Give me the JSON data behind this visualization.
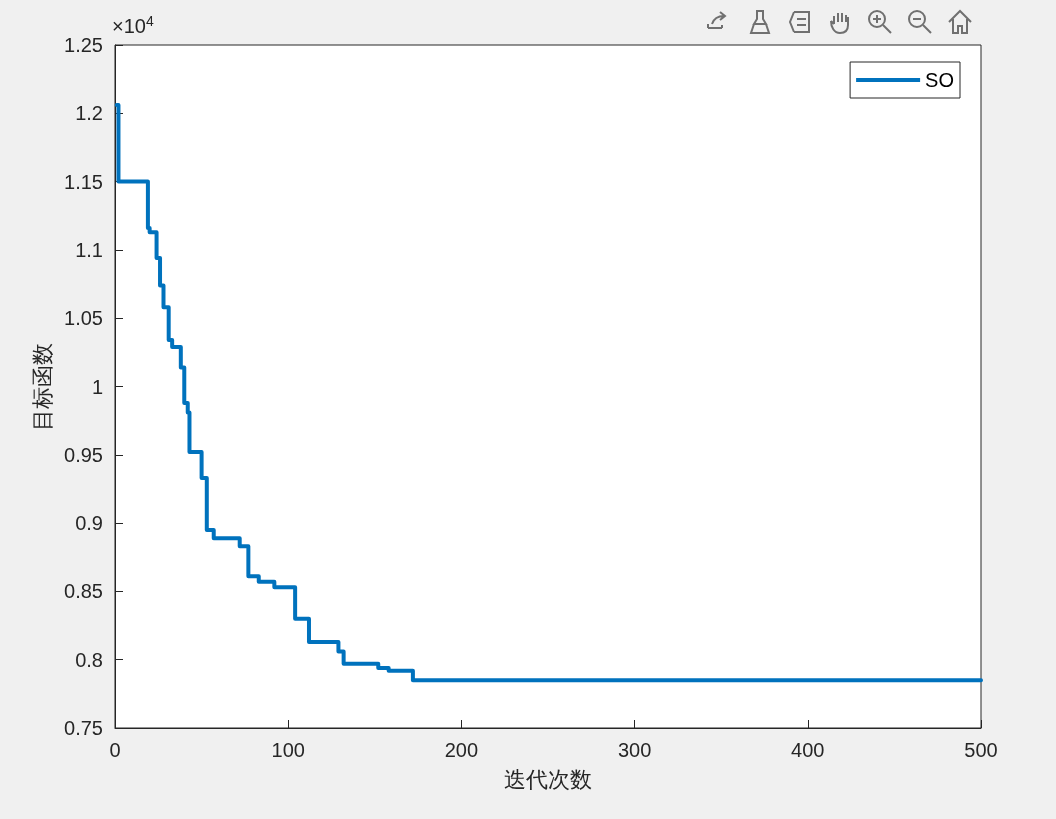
{
  "chart_data": {
    "type": "step",
    "xlabel": "迭代次数",
    "ylabel": "目标函数",
    "annotations": [
      "×10$^{4}$"
    ],
    "series": [
      {
        "name": "SO",
        "color": "#0072bd",
        "x": [
          1,
          2,
          19,
          20,
          24,
          26,
          28,
          31,
          33,
          38,
          40,
          42,
          43,
          50,
          53,
          57,
          72,
          77,
          83,
          92,
          104,
          112,
          129,
          132,
          152,
          158,
          172,
          500
        ],
        "values": [
          1.206,
          1.15,
          1.116,
          1.113,
          1.094,
          1.074,
          1.058,
          1.034,
          1.029,
          1.014,
          0.988,
          0.981,
          0.952,
          0.933,
          0.895,
          0.889,
          0.883,
          0.861,
          0.857,
          0.853,
          0.83,
          0.813,
          0.806,
          0.797,
          0.794,
          0.792,
          0.785,
          0.785
        ]
      }
    ],
    "xlim": [
      0,
      500
    ],
    "xticks": [
      0,
      100,
      200,
      300,
      400,
      500
    ],
    "ylim": [
      0.75,
      1.25
    ],
    "yticks": [
      0.75,
      0.8,
      0.85,
      0.9,
      0.95,
      1,
      1.05,
      1.1,
      1.15,
      1.2,
      1.25
    ],
    "legend": "top right",
    "grid": false,
    "line_style": "solid",
    "marker": "none"
  }
}
